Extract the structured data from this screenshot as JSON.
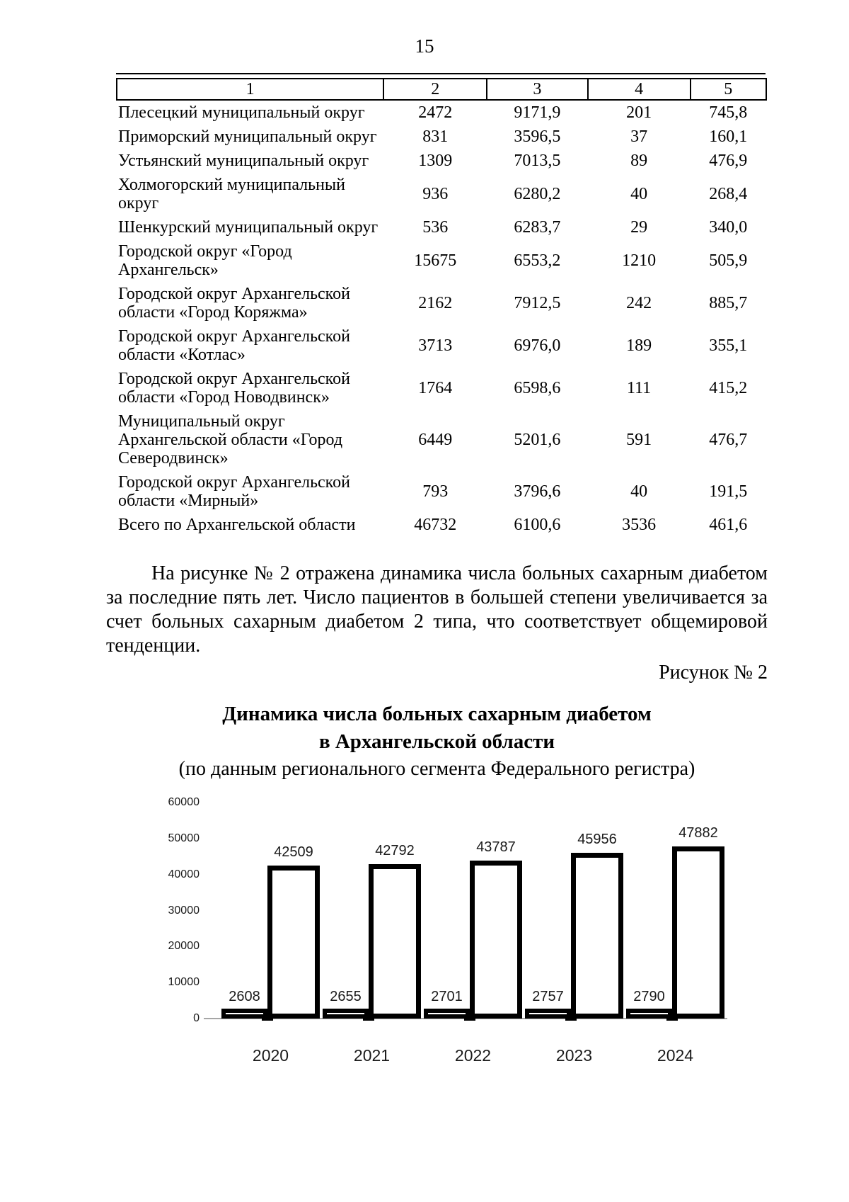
{
  "page": {
    "number": "15"
  },
  "table": {
    "header": [
      "1",
      "2",
      "3",
      "4",
      "5"
    ],
    "rows": [
      [
        "Плесецкий муниципальный округ",
        "2472",
        "9171,9",
        "201",
        "745,8"
      ],
      [
        "Приморский муниципальный округ",
        "831",
        "3596,5",
        "37",
        "160,1"
      ],
      [
        "Устьянский муниципальный округ",
        "1309",
        "7013,5",
        "89",
        "476,9"
      ],
      [
        "Холмогорский муниципальный округ",
        "936",
        "6280,2",
        "40",
        "268,4"
      ],
      [
        "Шенкурский муниципальный округ",
        "536",
        "6283,7",
        "29",
        "340,0"
      ],
      [
        "Городской округ «Город\nАрхангельск»",
        "15675",
        "6553,2",
        "1210",
        "505,9"
      ],
      [
        "Городской округ Архангельской\nобласти «Город Коряжма»",
        "2162",
        "7912,5",
        "242",
        "885,7"
      ],
      [
        "Городской округ Архангельской\nобласти «Котлас»",
        "3713",
        "6976,0",
        "189",
        "355,1"
      ],
      [
        "Городской округ Архангельской\nобласти «Город Новодвинск»",
        "1764",
        "6598,6",
        "111",
        "415,2"
      ],
      [
        "Муниципальный округ\nАрхангельской области «Город\nСеверодвинск»",
        "6449",
        "5201,6",
        "591",
        "476,7"
      ],
      [
        "Городской округ Архангельской\nобласти «Мирный»",
        "793",
        "3796,6",
        "40",
        "191,5"
      ],
      [
        "Всего по Архангельской области",
        "46732",
        "6100,6",
        "3536",
        "461,6"
      ]
    ]
  },
  "paragraph": "На рисунке № 2 отражена динамика числа больных сахарным диабетом за последние пять лет. Число пациентов в большей степени увеличивается за счет больных сахарным диабетом 2 типа, что соответствует общемировой тенденции.",
  "figure_label": "Рисунок № 2",
  "chart_data": {
    "type": "bar",
    "title": "Динамика числа больных сахарным диабетом",
    "title_line2": "в Архангельской области",
    "subtitle": "(по данным регионального сегмента Федерального регистра)",
    "categories": [
      "2020",
      "2021",
      "2022",
      "2023",
      "2024"
    ],
    "series": [
      {
        "name": "",
        "values": [
          2608,
          2655,
          2701,
          2757,
          2790
        ]
      },
      {
        "name": "",
        "values": [
          42509,
          42792,
          43787,
          45956,
          47882
        ]
      }
    ],
    "xlabel": "",
    "ylabel": "",
    "ylim": [
      0,
      60000
    ],
    "ytick_step": 10000,
    "yticks": [
      0,
      10000,
      20000,
      30000,
      40000,
      50000,
      60000
    ],
    "grid": false,
    "legend": false,
    "data_labels": true,
    "bar_fill": "#ffffff",
    "bar_stroke": "#000000",
    "axis_color": "#a6a6a6",
    "text_color": "#1a1a1a"
  }
}
